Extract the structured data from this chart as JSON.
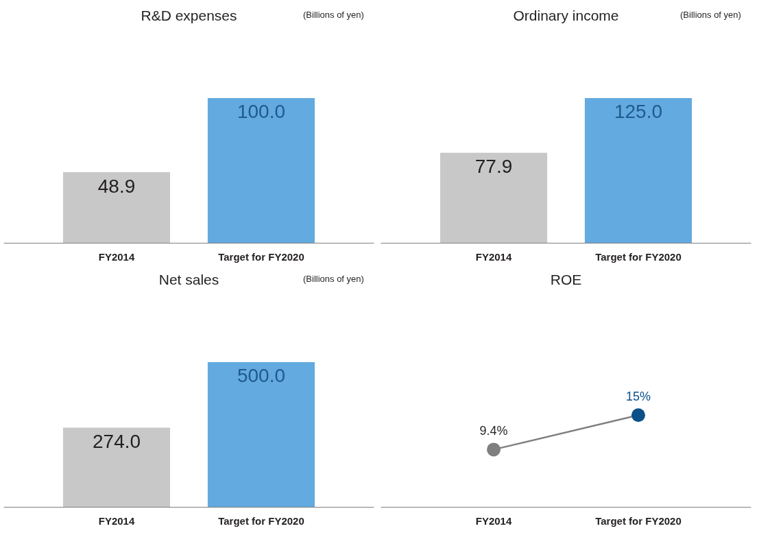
{
  "chart_data": [
    {
      "type": "bar",
      "title": "R&D expenses",
      "subtitle": "(Billions of yen)",
      "categories": [
        "FY2014",
        "Target for FY2020"
      ],
      "values": [
        48.9,
        100.0
      ],
      "colors": [
        "#c8c8c9",
        "#62aadf"
      ],
      "value_labels": [
        "48.9",
        "100.0"
      ]
    },
    {
      "type": "bar",
      "title": "Ordinary income",
      "subtitle": "(Billions of yen)",
      "categories": [
        "FY2014",
        "Target for FY2020"
      ],
      "values": [
        77.9,
        125.0
      ],
      "colors": [
        "#c8c8c9",
        "#62aadf"
      ],
      "value_labels": [
        "77.9",
        "125.0"
      ]
    },
    {
      "type": "bar",
      "title": "Net sales",
      "subtitle": "(Billions of yen)",
      "categories": [
        "FY2014",
        "Target for FY2020"
      ],
      "values": [
        274.0,
        500.0
      ],
      "colors": [
        "#c8c8c9",
        "#62aadf"
      ],
      "value_labels": [
        "274.0",
        "500.0"
      ]
    },
    {
      "type": "line",
      "title": "ROE",
      "categories": [
        "FY2014",
        "Target for FY2020"
      ],
      "values": [
        9.4,
        15
      ],
      "color": "#808080",
      "colors": [
        "#7f7f7f",
        "#0b5089"
      ],
      "marker": "circle",
      "value_labels": [
        "9.4%",
        "15%"
      ]
    }
  ]
}
